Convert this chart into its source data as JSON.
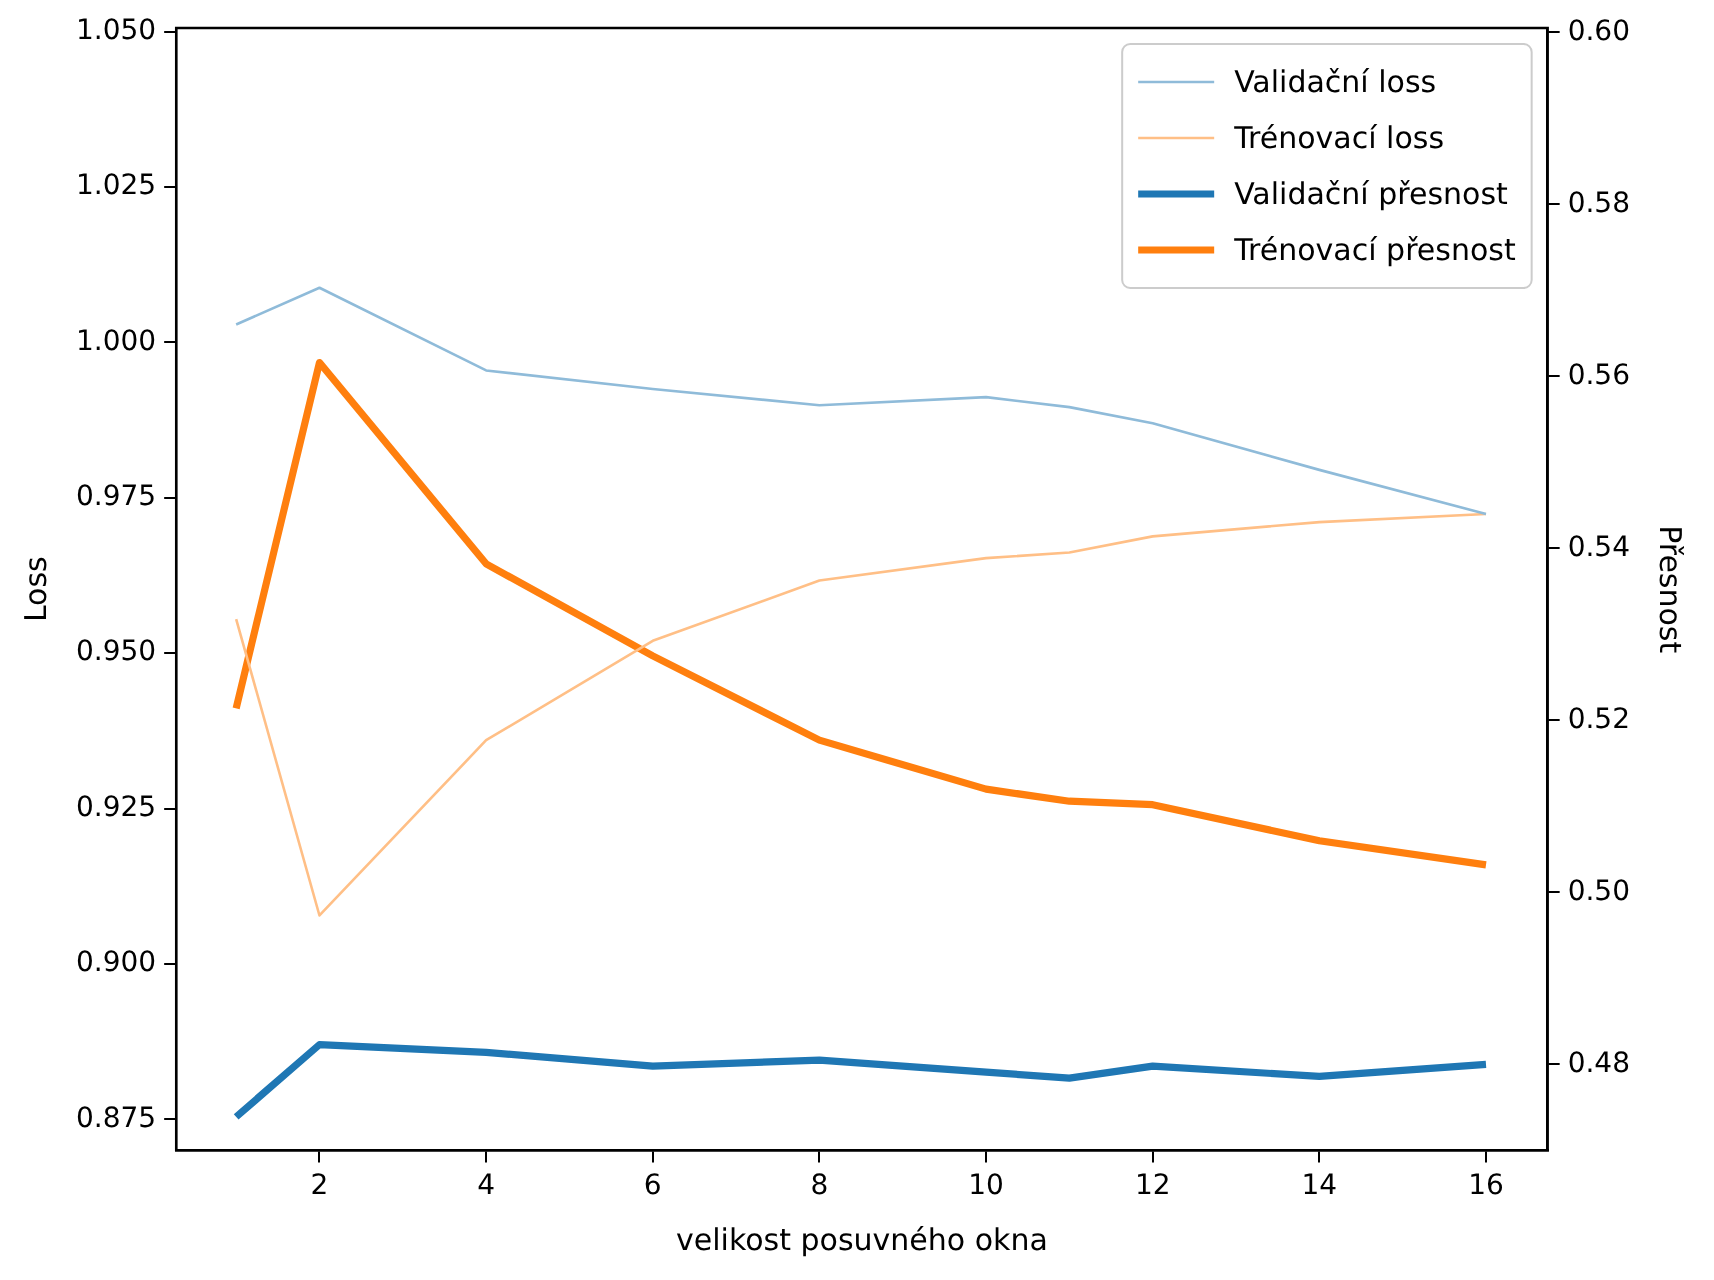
{
  "chart_data": {
    "type": "line",
    "xlabel": "velikost posuvného okna",
    "ylabel": "Loss",
    "y2label": "Přesnost",
    "x": [
      1,
      2,
      4,
      6,
      8,
      10,
      11,
      12,
      14,
      16
    ],
    "xlim": [
      0.28,
      16.74
    ],
    "xticks": [
      2,
      4,
      6,
      8,
      10,
      12,
      14,
      16
    ],
    "ylim": [
      0.87,
      1.0506
    ],
    "yticks": [
      {
        "value": 0.875,
        "label": "0.875"
      },
      {
        "value": 0.9,
        "label": "0.900"
      },
      {
        "value": 0.925,
        "label": "0.925"
      },
      {
        "value": 0.95,
        "label": "0.950"
      },
      {
        "value": 0.975,
        "label": "0.975"
      },
      {
        "value": 1,
        "label": "1.000"
      },
      {
        "value": 1.025,
        "label": "1.025"
      },
      {
        "value": 1.05,
        "label": "1.050"
      }
    ],
    "y2lim": [
      0.47,
      0.6005
    ],
    "y2ticks": [
      {
        "value": 0.48,
        "label": "0.48"
      },
      {
        "value": 0.5,
        "label": "0.50"
      },
      {
        "value": 0.52,
        "label": "0.52"
      },
      {
        "value": 0.54,
        "label": "0.54"
      },
      {
        "value": 0.56,
        "label": "0.56"
      },
      {
        "value": 0.58,
        "label": "0.58"
      },
      {
        "value": 0.6,
        "label": "0.60"
      }
    ],
    "series": [
      {
        "name": "Validační loss",
        "color": "#8fbbd9",
        "values": [
          1.0029,
          1.0088,
          0.9955,
          0.9925,
          0.9899,
          0.9912,
          0.9896,
          0.987,
          0.9795,
          0.9724
        ]
      },
      {
        "name": "Trénovací loss",
        "color": "#ffbf86",
        "values": [
          0.9555,
          0.9078,
          0.936,
          0.952,
          0.9617,
          0.9653,
          0.9662,
          0.9688,
          0.9711,
          0.9724
        ]
      },
      {
        "name": "Validační přesnost",
        "color": "#1f77b4",
        "axis": "y2",
        "values": [
          0.4739,
          0.4823,
          0.4814,
          0.4798,
          0.4805,
          0.4791,
          0.4784,
          0.4798,
          0.4786,
          0.48
        ]
      },
      {
        "name": "Trénovací přesnost",
        "color": "#ff7f0e",
        "axis": "y2",
        "values": [
          0.5214,
          0.5616,
          0.5382,
          0.5275,
          0.5177,
          0.512,
          0.5106,
          0.5102,
          0.506,
          0.5032
        ]
      }
    ],
    "legend": "top right",
    "grid": false,
    "marker": "none",
    "line_style": "solid"
  }
}
